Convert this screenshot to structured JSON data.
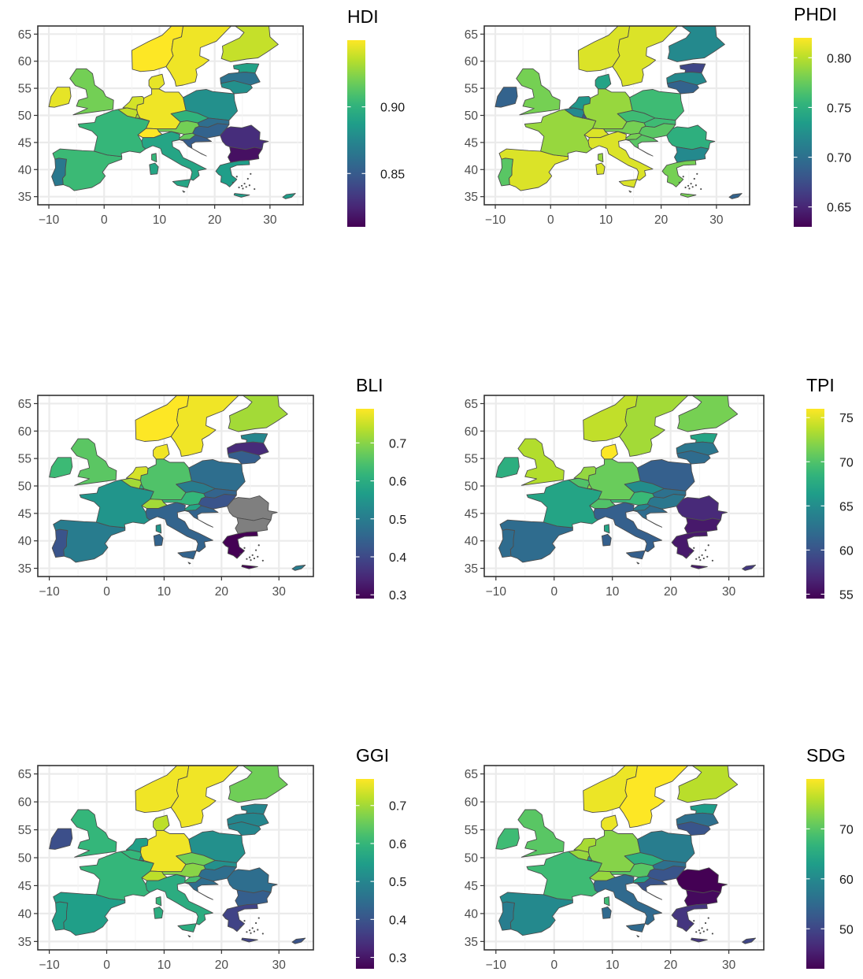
{
  "chart_data": [
    {
      "type": "map",
      "index": "HDI",
      "xlim": [
        -12,
        36
      ],
      "ylim": [
        33.5,
        66.5
      ],
      "xticks": [
        -10,
        0,
        10,
        20,
        30
      ],
      "yticks": [
        35,
        40,
        45,
        50,
        55,
        60,
        65
      ],
      "grid": true,
      "legend": {
        "title": "HDI",
        "placement": "right",
        "ticks": [
          0.85,
          0.9
        ],
        "range": [
          0.81,
          0.95
        ]
      },
      "regions": {
        "IE": 0.945,
        "GB": 0.92,
        "PT": 0.866,
        "ES": 0.905,
        "FR": 0.903,
        "BE": 0.937,
        "NL": 0.941,
        "LU": 0.93,
        "DE": 0.947,
        "DK": 0.945,
        "NO": 0.955,
        "SE": 0.947,
        "FI": 0.938,
        "EE": 0.89,
        "LV": 0.863,
        "LT": 0.88,
        "PL": 0.88,
        "CZ": 0.9,
        "AT": 0.92,
        "CH": 0.95,
        "IT": 0.892,
        "SI": 0.917,
        "HR": 0.851,
        "SK": 0.86,
        "HU": 0.854,
        "RO": 0.828,
        "BG": 0.816,
        "GR": 0.888,
        "CY": 0.887,
        "MT": 0.895
      }
    },
    {
      "type": "map",
      "index": "PHDI",
      "xlim": [
        -12,
        36
      ],
      "ylim": [
        33.5,
        66.5
      ],
      "xticks": [
        -10,
        0,
        10,
        20,
        30
      ],
      "yticks": [
        35,
        40,
        45,
        50,
        55,
        60,
        65
      ],
      "grid": true,
      "legend": {
        "title": "PHDI",
        "placement": "right",
        "ticks": [
          0.65,
          0.7,
          0.75,
          0.8
        ],
        "range": [
          0.63,
          0.82
        ]
      },
      "regions": {
        "IE": 0.69,
        "GB": 0.78,
        "PT": 0.77,
        "ES": 0.81,
        "FR": 0.79,
        "BE": 0.72,
        "NL": 0.73,
        "LU": 0.68,
        "DE": 0.79,
        "DK": 0.74,
        "NO": 0.81,
        "SE": 0.81,
        "FI": 0.72,
        "EE": 0.67,
        "LV": 0.72,
        "LT": 0.69,
        "PL": 0.76,
        "CZ": 0.76,
        "AT": 0.78,
        "CH": 0.81,
        "IT": 0.81,
        "SI": 0.78,
        "HR": 0.77,
        "SK": 0.76,
        "HU": 0.77,
        "RO": 0.75,
        "BG": 0.72,
        "GR": 0.78,
        "CY": 0.69,
        "MT": 0.81
      }
    },
    {
      "type": "map",
      "index": "BLI",
      "xlim": [
        -12,
        36
      ],
      "ylim": [
        33.5,
        66.5
      ],
      "xticks": [
        -10,
        0,
        10,
        20,
        30
      ],
      "yticks": [
        35,
        40,
        45,
        50,
        55,
        60,
        65
      ],
      "grid": true,
      "legend": {
        "title": "BLI",
        "placement": "right",
        "ticks": [
          0.3,
          0.4,
          0.5,
          0.6,
          0.7
        ],
        "range": [
          0.29,
          0.79
        ]
      },
      "regions": {
        "IE": 0.63,
        "GB": 0.66,
        "PT": 0.42,
        "ES": 0.5,
        "FR": 0.55,
        "BE": 0.72,
        "NL": 0.76,
        "LU": 0.6,
        "DE": 0.65,
        "DK": 0.78,
        "NO": 0.79,
        "SE": 0.78,
        "FI": 0.72,
        "EE": 0.52,
        "LV": 0.35,
        "LT": 0.44,
        "PL": 0.47,
        "CZ": 0.5,
        "AT": 0.62,
        "CH": 0.72,
        "IT": 0.45,
        "SI": 0.58,
        "HR": 0.45,
        "SK": 0.45,
        "HU": 0.42,
        "RO": null,
        "BG": null,
        "GR": 0.29,
        "CY": 0.5,
        "MT": 0.5
      }
    },
    {
      "type": "map",
      "index": "TPI",
      "xlim": [
        -12,
        36
      ],
      "ylim": [
        33.5,
        66.5
      ],
      "xticks": [
        -10,
        0,
        10,
        20,
        30
      ],
      "yticks": [
        35,
        40,
        45,
        50,
        55,
        60,
        65
      ],
      "grid": true,
      "legend": {
        "title": "TPI",
        "placement": "right",
        "ticks": [
          55,
          60,
          65,
          70,
          75
        ],
        "range": [
          54.5,
          76
        ]
      },
      "regions": {
        "IE": 68.0,
        "GB": 73.5,
        "PT": 62.0,
        "ES": 62.0,
        "FR": 67.0,
        "BE": 70.0,
        "NL": 72.5,
        "LU": 72.0,
        "DE": 71.0,
        "DK": 76.0,
        "NO": 74.0,
        "SE": 73.0,
        "FI": 71.5,
        "EE": 67.0,
        "LV": 63.0,
        "LT": 62.0,
        "PL": 61.0,
        "CZ": 65.0,
        "AT": 69.0,
        "CH": 70.0,
        "IT": 61.0,
        "SI": 64.0,
        "HR": 62.0,
        "SK": 62.5,
        "HU": 63.0,
        "RO": 57.0,
        "BG": 56.0,
        "GR": 56.0,
        "CY": 58.0,
        "MT": 62.0
      }
    },
    {
      "type": "map",
      "index": "GGI",
      "xlim": [
        -12,
        36
      ],
      "ylim": [
        33.5,
        66.5
      ],
      "xticks": [
        -10,
        0,
        10,
        20,
        30
      ],
      "yticks": [
        35,
        40,
        45,
        50,
        55,
        60,
        65
      ],
      "grid": true,
      "legend": {
        "title": "GGI",
        "placement": "right",
        "ticks": [
          0.3,
          0.4,
          0.5,
          0.6,
          0.7
        ],
        "range": [
          0.27,
          0.77
        ]
      },
      "regions": {
        "IE": 0.39,
        "GB": 0.6,
        "PT": 0.55,
        "ES": 0.55,
        "FR": 0.6,
        "BE": 0.6,
        "NL": 0.55,
        "LU": 0.52,
        "DE": 0.76,
        "DK": 0.72,
        "NO": 0.76,
        "SE": 0.76,
        "FI": 0.66,
        "EE": 0.5,
        "LV": 0.5,
        "LT": 0.5,
        "PL": 0.52,
        "CZ": 0.66,
        "AT": 0.68,
        "CH": 0.72,
        "IT": 0.58,
        "SI": 0.62,
        "HR": 0.45,
        "SK": 0.52,
        "HU": 0.45,
        "RO": 0.45,
        "BG": 0.42,
        "GR": 0.37,
        "CY": 0.4,
        "MT": 0.5
      }
    },
    {
      "type": "map",
      "index": "SDG",
      "xlim": [
        -12,
        36
      ],
      "ylim": [
        33.5,
        66.5
      ],
      "xticks": [
        -10,
        0,
        10,
        20,
        30
      ],
      "yticks": [
        35,
        40,
        45,
        50,
        55,
        60,
        65
      ],
      "grid": true,
      "legend": {
        "title": "SDG",
        "placement": "right",
        "ticks": [
          50,
          60,
          70
        ],
        "range": [
          42,
          80
        ]
      },
      "regions": {
        "IE": 68.0,
        "GB": 70.0,
        "PT": 58.0,
        "ES": 60.0,
        "FR": 68.0,
        "BE": 74.0,
        "NL": 75.0,
        "LU": 65.0,
        "DE": 73.0,
        "DK": 79.0,
        "NO": 79.0,
        "SE": 80.0,
        "FI": 76.0,
        "EE": 63.0,
        "LV": 56.0,
        "LT": 52.0,
        "PL": 58.0,
        "CZ": 66.0,
        "AT": 70.0,
        "CH": 74.0,
        "IT": 55.0,
        "SI": 64.0,
        "HR": 52.0,
        "SK": 56.0,
        "HU": 52.0,
        "RO": 42.0,
        "BG": 43.0,
        "GR": 48.0,
        "CY": 50.0,
        "MT": 62.0
      }
    }
  ]
}
